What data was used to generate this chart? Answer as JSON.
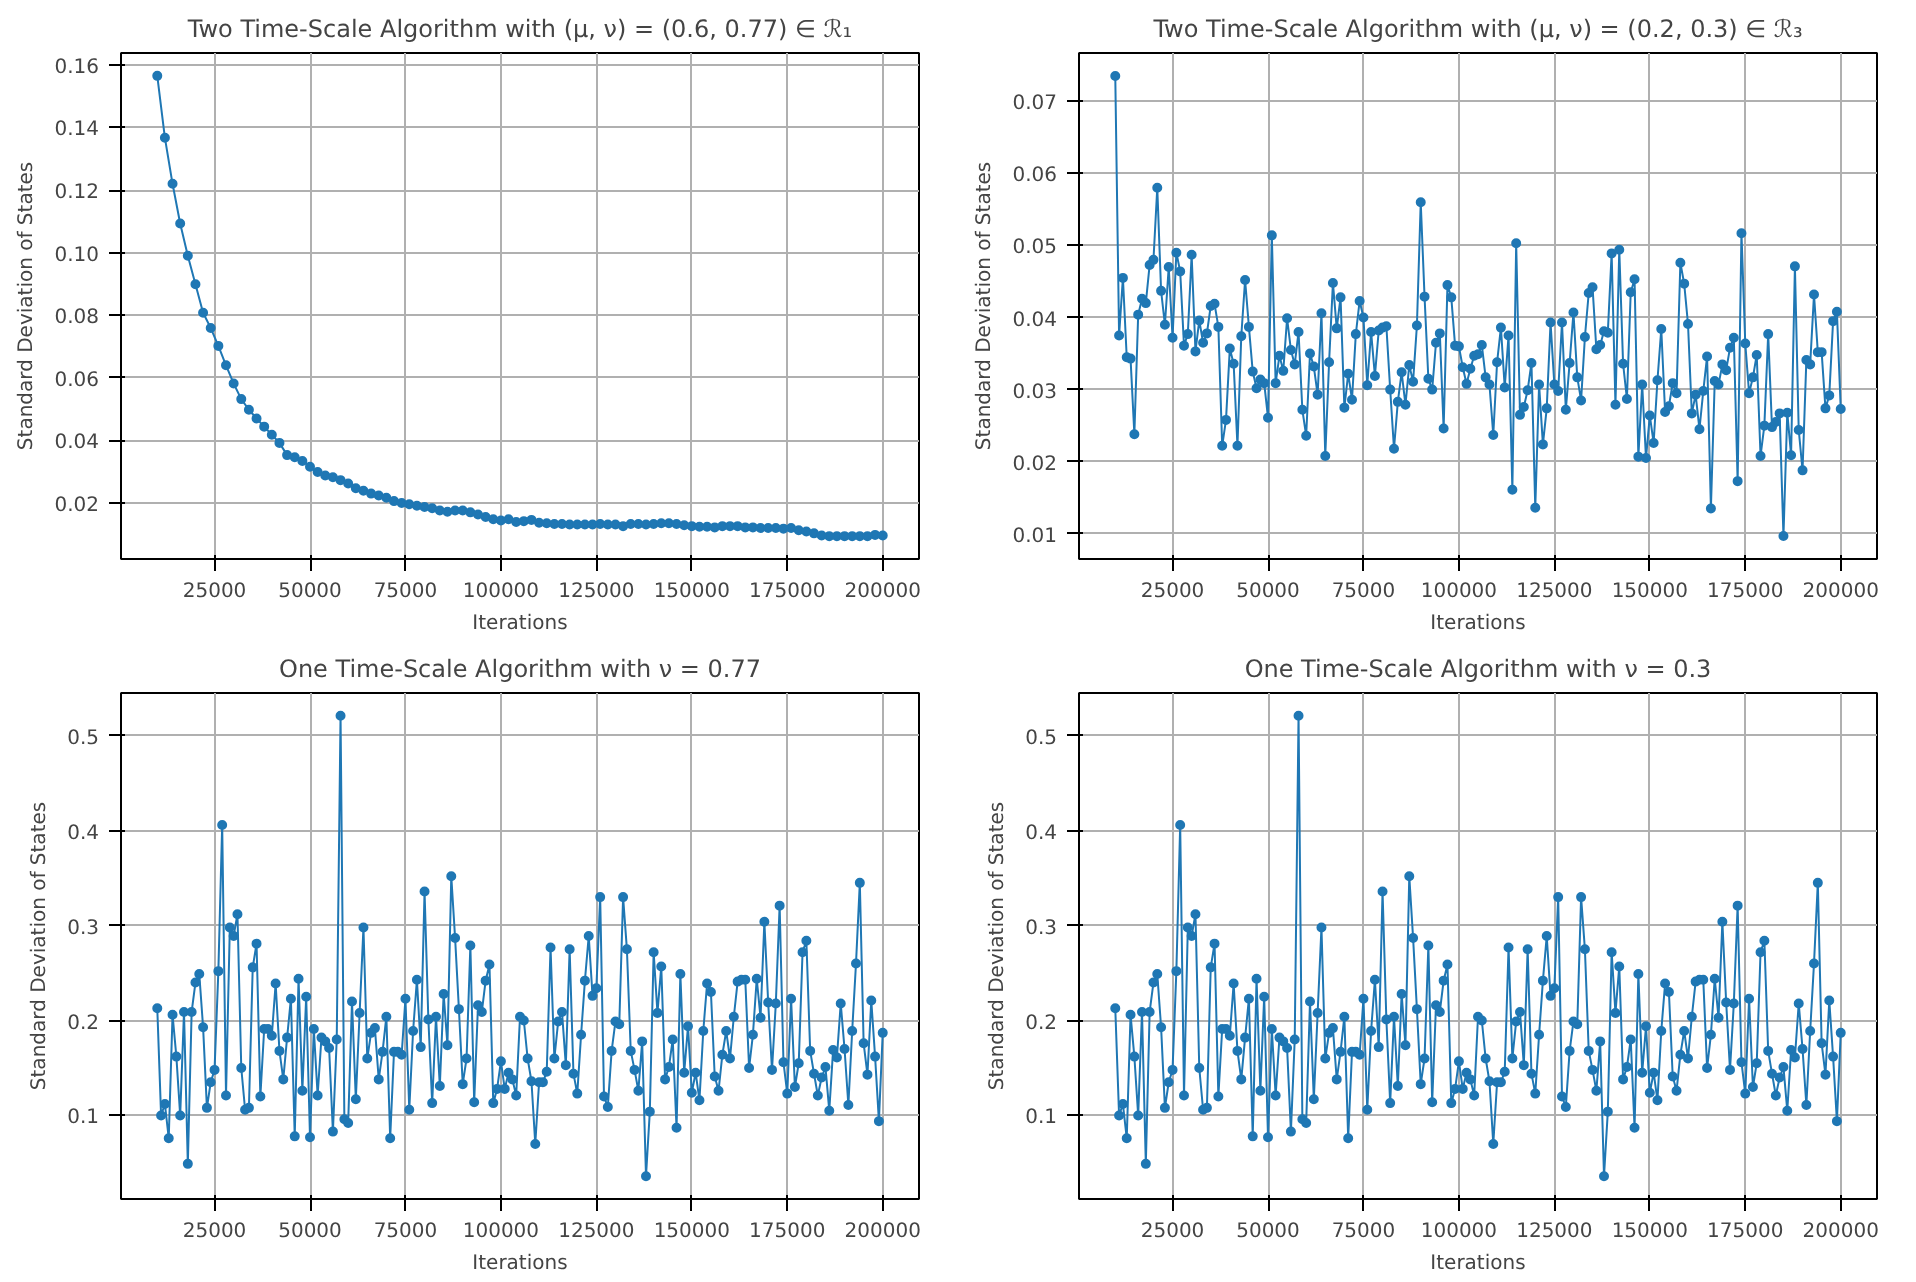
{
  "chart_data": [
    {
      "type": "line",
      "title": "Two Time-Scale Algorithm with (μ, ν) = (0.6, 0.77) ∈ ℛ₁",
      "xlabel": "Iterations",
      "ylabel": "Standard Deviation of States",
      "marker": "circle",
      "line_style": "solid",
      "grid": true,
      "xlim": [
        500,
        209500
      ],
      "ylim": [
        0.0021,
        0.1638
      ],
      "xticks": [
        25000,
        50000,
        75000,
        100000,
        125000,
        150000,
        175000,
        200000
      ],
      "yticks": [
        0.02,
        0.04,
        0.06,
        0.08,
        {
          "value": 0.1,
          "label": "0.10"
        },
        0.12,
        0.14,
        0.16
      ],
      "x": [
        10000,
        12000,
        14000,
        16000,
        18000,
        20000,
        22000,
        24000,
        26000,
        28000,
        30000,
        32000,
        34000,
        36000,
        38000,
        40000,
        42000,
        44000,
        46000,
        48000,
        50000,
        52000,
        54000,
        56000,
        58000,
        60000,
        62000,
        64000,
        66000,
        68000,
        70000,
        72000,
        74000,
        76000,
        78000,
        80000,
        82000,
        84000,
        86000,
        88000,
        90000,
        92000,
        94000,
        96000,
        98000,
        100000,
        102000,
        104000,
        106000,
        108000,
        110000,
        112000,
        114000,
        116000,
        118000,
        120000,
        122000,
        124000,
        126000,
        128000,
        130000,
        132000,
        134000,
        136000,
        138000,
        140000,
        142000,
        144000,
        146000,
        148000,
        150000,
        152000,
        154000,
        156000,
        158000,
        160000,
        162000,
        164000,
        166000,
        168000,
        170000,
        172000,
        174000,
        176000,
        178000,
        180000,
        182000,
        184000,
        186000,
        188000,
        190000,
        192000,
        194000,
        196000,
        198000,
        200000
      ],
      "series": [
        {
          "color": "#1f77b4",
          "values": [
            0.1565,
            0.1367,
            0.122,
            0.1093,
            0.099,
            0.0899,
            0.0808,
            0.0759,
            0.0702,
            0.064,
            0.0582,
            0.0532,
            0.0498,
            0.047,
            0.0444,
            0.0418,
            0.0392,
            0.0353,
            0.0346,
            0.0334,
            0.0316,
            0.0299,
            0.0288,
            0.0282,
            0.0273,
            0.0262,
            0.0247,
            0.0239,
            0.023,
            0.0224,
            0.0217,
            0.0206,
            0.02,
            0.0196,
            0.0191,
            0.0187,
            0.0183,
            0.0176,
            0.0172,
            0.0176,
            0.0176,
            0.017,
            0.0163,
            0.0155,
            0.0148,
            0.0144,
            0.0148,
            0.0139,
            0.0142,
            0.0146,
            0.0137,
            0.0135,
            0.0133,
            0.0133,
            0.0131,
            0.0131,
            0.0131,
            0.0131,
            0.0133,
            0.0131,
            0.0131,
            0.0126,
            0.0133,
            0.0133,
            0.0131,
            0.0133,
            0.0135,
            0.0135,
            0.0133,
            0.0129,
            0.0126,
            0.0124,
            0.0124,
            0.0122,
            0.0126,
            0.0126,
            0.0126,
            0.0122,
            0.0122,
            0.012,
            0.012,
            0.012,
            0.0118,
            0.012,
            0.0113,
            0.0109,
            0.0103,
            0.0096,
            0.0094,
            0.0094,
            0.0094,
            0.0094,
            0.0094,
            0.0094,
            0.0098,
            0.0096
          ]
        }
      ]
    },
    {
      "type": "line",
      "title": "Two Time-Scale Algorithm with (μ, ν) = (0.2, 0.3) ∈ ℛ₃",
      "xlabel": "Iterations",
      "ylabel": "Standard Deviation of States",
      "marker": "circle",
      "line_style": "solid",
      "grid": true,
      "xlim": [
        500,
        209500
      ],
      "ylim": [
        0.0065,
        0.0767
      ],
      "xticks": [
        25000,
        50000,
        75000,
        100000,
        125000,
        150000,
        175000,
        200000
      ],
      "yticks": [
        0.01,
        0.02,
        0.03,
        0.04,
        0.05,
        0.06,
        0.07
      ],
      "x": [
        10000,
        11000,
        12000,
        13000,
        14000,
        15000,
        16000,
        17000,
        18000,
        19000,
        20000,
        21000,
        22000,
        23000,
        24000,
        25000,
        26000,
        27000,
        28000,
        29000,
        30000,
        31000,
        32000,
        33000,
        34000,
        35000,
        36000,
        37000,
        38000,
        39000,
        40000,
        41000,
        42000,
        43000,
        44000,
        45000,
        46000,
        47000,
        48000,
        49000,
        50000,
        51000,
        52000,
        53000,
        54000,
        55000,
        56000,
        57000,
        58000,
        59000,
        60000,
        61000,
        62000,
        63000,
        64000,
        65000,
        66000,
        67000,
        68000,
        69000,
        70000,
        71000,
        72000,
        73000,
        74000,
        75000,
        76000,
        77000,
        78000,
        79000,
        80000,
        81000,
        82000,
        83000,
        84000,
        85000,
        86000,
        87000,
        88000,
        89000,
        90000,
        91000,
        92000,
        93000,
        94000,
        95000,
        96000,
        97000,
        98000,
        99000,
        100000,
        101000,
        102000,
        103000,
        104000,
        105000,
        106000,
        107000,
        108000,
        109000,
        110000,
        111000,
        112000,
        113000,
        114000,
        115000,
        116000,
        117000,
        118000,
        119000,
        120000,
        121000,
        122000,
        123000,
        124000,
        125000,
        126000,
        127000,
        128000,
        129000,
        130000,
        131000,
        132000,
        133000,
        134000,
        135000,
        136000,
        137000,
        138000,
        139000,
        140000,
        141000,
        142000,
        143000,
        144000,
        145000,
        146000,
        147000,
        148000,
        149000,
        150000,
        151000,
        152000,
        153000,
        154000,
        155000,
        156000,
        157000,
        158000,
        159000,
        160000,
        161000,
        162000,
        163000,
        164000,
        165000,
        166000,
        167000,
        168000,
        169000,
        170000,
        171000,
        172000,
        173000,
        174000,
        175000,
        176000,
        177000,
        178000,
        179000,
        180000,
        181000,
        182000,
        183000,
        184000,
        185000,
        186000,
        187000,
        188000,
        189000,
        190000,
        191000,
        192000,
        193000,
        194000,
        195000,
        196000,
        197000,
        198000,
        199000,
        200000
      ],
      "series": [
        {
          "color": "#1f77b4",
          "values": [
            0.0735,
            0.0375,
            0.0455,
            0.0345,
            0.0343,
            0.0238,
            0.0404,
            0.0426,
            0.042,
            0.0473,
            0.048,
            0.058,
            0.0437,
            0.039,
            0.047,
            0.0372,
            0.049,
            0.0464,
            0.0361,
            0.0377,
            0.0487,
            0.0353,
            0.0396,
            0.0365,
            0.0378,
            0.0416,
            0.0419,
            0.0387,
            0.0222,
            0.0258,
            0.0357,
            0.0336,
            0.0222,
            0.0374,
            0.0452,
            0.0387,
            0.0325,
            0.0302,
            0.0314,
            0.0309,
            0.0261,
            0.0514,
            0.0309,
            0.0347,
            0.0326,
            0.0399,
            0.0355,
            0.0335,
            0.038,
            0.0272,
            0.0236,
            0.035,
            0.0332,
            0.0293,
            0.0406,
            0.0208,
            0.0338,
            0.0448,
            0.0385,
            0.0428,
            0.0275,
            0.0322,
            0.0286,
            0.0377,
            0.0423,
            0.04,
            0.0306,
            0.038,
            0.0319,
            0.0382,
            0.0386,
            0.0388,
            0.03,
            0.0218,
            0.0283,
            0.0324,
            0.0279,
            0.0334,
            0.0311,
            0.0389,
            0.056,
            0.0429,
            0.0315,
            0.03,
            0.0365,
            0.0378,
            0.0246,
            0.0445,
            0.0428,
            0.0361,
            0.036,
            0.0331,
            0.0308,
            0.0329,
            0.0347,
            0.0349,
            0.0362,
            0.0317,
            0.0307,
            0.0237,
            0.0338,
            0.0386,
            0.0303,
            0.0375,
            0.0161,
            0.0503,
            0.0265,
            0.0276,
            0.0299,
            0.0337,
            0.0136,
            0.0307,
            0.0224,
            0.0274,
            0.0393,
            0.0307,
            0.0298,
            0.0393,
            0.0272,
            0.0337,
            0.0407,
            0.0317,
            0.0285,
            0.0373,
            0.0434,
            0.0442,
            0.0356,
            0.0362,
            0.0381,
            0.0379,
            0.0489,
            0.0279,
            0.0494,
            0.0336,
            0.0287,
            0.0435,
            0.0453,
            0.0207,
            0.0307,
            0.0205,
            0.0264,
            0.0226,
            0.0313,
            0.0384,
            0.0269,
            0.0277,
            0.0309,
            0.0295,
            0.0476,
            0.0447,
            0.0391,
            0.0267,
            0.0293,
            0.0245,
            0.0298,
            0.0346,
            0.0135,
            0.0312,
            0.0307,
            0.0335,
            0.0327,
            0.0358,
            0.0372,
            0.0173,
            0.0517,
            0.0364,
            0.0295,
            0.0317,
            0.0348,
            0.0208,
            0.025,
            0.0377,
            0.0248,
            0.0255,
            0.0267,
            0.0097,
            0.0268,
            0.0209,
            0.0471,
            0.0244,
            0.0188,
            0.0341,
            0.0335,
            0.0432,
            0.0352,
            0.0352,
            0.0274,
            0.0292,
            0.0395,
            0.0408,
            0.0273
          ]
        }
      ]
    },
    {
      "type": "line",
      "title": "One Time-Scale Algorithm with ν = 0.77",
      "x": [
        10000,
        11000,
        12000,
        13000,
        14000,
        15000,
        16000,
        17000,
        18000,
        19000,
        20000,
        21000,
        22000,
        23000,
        24000,
        25000,
        26000,
        27000,
        28000,
        29000,
        30000,
        31000,
        32000,
        33000,
        34000,
        35000,
        36000,
        37000,
        38000,
        39000,
        40000,
        41000,
        42000,
        43000,
        44000,
        45000,
        46000,
        47000,
        48000,
        49000,
        50000,
        51000,
        52000,
        53000,
        54000,
        55000,
        56000,
        57000,
        58000,
        59000,
        60000,
        61000,
        62000,
        63000,
        64000,
        65000,
        66000,
        67000,
        68000,
        69000,
        70000,
        71000,
        72000,
        73000,
        74000,
        75000,
        76000,
        77000,
        78000,
        79000,
        80000,
        81000,
        82000,
        83000,
        84000,
        85000,
        86000,
        87000,
        88000,
        89000,
        90000,
        91000,
        92000,
        93000,
        94000,
        95000,
        96000,
        97000,
        98000,
        99000,
        100000,
        101000,
        102000,
        103000,
        104000,
        105000,
        106000,
        107000,
        108000,
        109000,
        110000,
        111000,
        112000,
        113000,
        114000,
        115000,
        116000,
        117000,
        118000,
        119000,
        120000,
        121000,
        122000,
        123000,
        124000,
        125000,
        126000,
        127000,
        128000,
        129000,
        130000,
        131000,
        132000,
        133000,
        134000,
        135000,
        136000,
        137000,
        138000,
        139000,
        140000,
        141000,
        142000,
        143000,
        144000,
        145000,
        146000,
        147000,
        148000,
        149000,
        150000,
        151000,
        152000,
        153000,
        154000,
        155000,
        156000,
        157000,
        158000,
        159000,
        160000,
        161000,
        162000,
        163000,
        164000,
        165000,
        166000,
        167000,
        168000,
        169000,
        170000,
        171000,
        172000,
        173000,
        174000,
        175000,
        176000,
        177000,
        178000,
        179000,
        180000,
        181000,
        182000,
        183000,
        184000,
        185000,
        186000,
        187000,
        188000,
        189000,
        190000,
        191000,
        192000,
        193000,
        194000,
        195000,
        196000,
        197000,
        198000,
        199000,
        200000
      ],
      "xlabel": "Iterations",
      "ylabel": "Standard Deviation of States",
      "marker": "circle",
      "line_style": "solid",
      "grid": true,
      "xlim": [
        500,
        209500
      ],
      "ylim": [
        0.012,
        0.545
      ],
      "xticks": [
        25000,
        50000,
        75000,
        100000,
        125000,
        150000,
        175000,
        200000
      ],
      "yticks": [
        0.1,
        0.2,
        0.3,
        0.4,
        0.5
      ],
      "series": [
        {
          "color": "#1f77b4",
          "values": [
            0.213,
            0.1,
            0.112,
            0.076,
            0.206,
            0.162,
            0.1,
            0.209,
            0.049,
            0.209,
            0.24,
            0.249,
            0.193,
            0.108,
            0.135,
            0.148,
            0.252,
            0.406,
            0.121,
            0.298,
            0.289,
            0.312,
            0.15,
            0.106,
            0.108,
            0.256,
            0.281,
            0.12,
            0.191,
            0.191,
            0.184,
            0.239,
            0.168,
            0.138,
            0.182,
            0.223,
            0.078,
            0.244,
            0.126,
            0.225,
            0.077,
            0.191,
            0.121,
            0.182,
            0.178,
            0.171,
            0.083,
            0.18,
            0.521,
            0.096,
            0.092,
            0.22,
            0.117,
            0.208,
            0.298,
            0.16,
            0.187,
            0.192,
            0.138,
            0.167,
            0.204,
            0.076,
            0.167,
            0.167,
            0.164,
            0.223,
            0.106,
            0.189,
            0.243,
            0.172,
            0.336,
            0.201,
            0.113,
            0.204,
            0.131,
            0.228,
            0.174,
            0.352,
            0.287,
            0.212,
            0.133,
            0.16,
            0.279,
            0.114,
            0.216,
            0.209,
            0.242,
            0.259,
            0.113,
            0.128,
            0.157,
            0.128,
            0.145,
            0.138,
            0.121,
            0.204,
            0.2,
            0.16,
            0.136,
            0.07,
            0.135,
            0.135,
            0.146,
            0.277,
            0.16,
            0.199,
            0.209,
            0.153,
            0.275,
            0.144,
            0.123,
            0.185,
            0.242,
            0.289,
            0.226,
            0.234,
            0.33,
            0.12,
            0.109,
            0.168,
            0.199,
            0.196,
            0.33,
            0.275,
            0.168,
            0.148,
            0.126,
            0.178,
            0.036,
            0.104,
            0.272,
            0.208,
            0.257,
            0.138,
            0.151,
            0.18,
            0.087,
            0.249,
            0.145,
            0.194,
            0.124,
            0.145,
            0.116,
            0.189,
            0.239,
            0.23,
            0.141,
            0.126,
            0.164,
            0.189,
            0.16,
            0.204,
            0.241,
            0.243,
            0.243,
            0.15,
            0.185,
            0.244,
            0.203,
            0.304,
            0.219,
            0.148,
            0.218,
            0.321,
            0.156,
            0.123,
            0.223,
            0.13,
            0.155,
            0.272,
            0.284,
            0.168,
            0.144,
            0.121,
            0.14,
            0.151,
            0.105,
            0.169,
            0.161,
            0.218,
            0.17,
            0.111,
            0.189,
            0.26,
            0.345,
            0.176,
            0.143,
            0.221,
            0.162,
            0.094,
            0.187
          ]
        }
      ]
    },
    {
      "type": "line",
      "title": "One Time-Scale Algorithm with ν = 0.3",
      "x": [
        10000,
        11000,
        12000,
        13000,
        14000,
        15000,
        16000,
        17000,
        18000,
        19000,
        20000,
        21000,
        22000,
        23000,
        24000,
        25000,
        26000,
        27000,
        28000,
        29000,
        30000,
        31000,
        32000,
        33000,
        34000,
        35000,
        36000,
        37000,
        38000,
        39000,
        40000,
        41000,
        42000,
        43000,
        44000,
        45000,
        46000,
        47000,
        48000,
        49000,
        50000,
        51000,
        52000,
        53000,
        54000,
        55000,
        56000,
        57000,
        58000,
        59000,
        60000,
        61000,
        62000,
        63000,
        64000,
        65000,
        66000,
        67000,
        68000,
        69000,
        70000,
        71000,
        72000,
        73000,
        74000,
        75000,
        76000,
        77000,
        78000,
        79000,
        80000,
        81000,
        82000,
        83000,
        84000,
        85000,
        86000,
        87000,
        88000,
        89000,
        90000,
        91000,
        92000,
        93000,
        94000,
        95000,
        96000,
        97000,
        98000,
        99000,
        100000,
        101000,
        102000,
        103000,
        104000,
        105000,
        106000,
        107000,
        108000,
        109000,
        110000,
        111000,
        112000,
        113000,
        114000,
        115000,
        116000,
        117000,
        118000,
        119000,
        120000,
        121000,
        122000,
        123000,
        124000,
        125000,
        126000,
        127000,
        128000,
        129000,
        130000,
        131000,
        132000,
        133000,
        134000,
        135000,
        136000,
        137000,
        138000,
        139000,
        140000,
        141000,
        142000,
        143000,
        144000,
        145000,
        146000,
        147000,
        148000,
        149000,
        150000,
        151000,
        152000,
        153000,
        154000,
        155000,
        156000,
        157000,
        158000,
        159000,
        160000,
        161000,
        162000,
        163000,
        164000,
        165000,
        166000,
        167000,
        168000,
        169000,
        170000,
        171000,
        172000,
        173000,
        174000,
        175000,
        176000,
        177000,
        178000,
        179000,
        180000,
        181000,
        182000,
        183000,
        184000,
        185000,
        186000,
        187000,
        188000,
        189000,
        190000,
        191000,
        192000,
        193000,
        194000,
        195000,
        196000,
        197000,
        198000,
        199000,
        200000
      ],
      "xlabel": "Iterations",
      "ylabel": "Standard Deviation of States",
      "marker": "circle",
      "line_style": "solid",
      "grid": true,
      "xlim": [
        500,
        209500
      ],
      "ylim": [
        0.012,
        0.545
      ],
      "xticks": [
        25000,
        50000,
        75000,
        100000,
        125000,
        150000,
        175000,
        200000
      ],
      "yticks": [
        0.1,
        0.2,
        0.3,
        0.4,
        0.5
      ],
      "series": [
        {
          "color": "#1f77b4",
          "values": [
            0.213,
            0.1,
            0.112,
            0.076,
            0.206,
            0.162,
            0.1,
            0.209,
            0.049,
            0.209,
            0.24,
            0.249,
            0.193,
            0.108,
            0.135,
            0.148,
            0.252,
            0.406,
            0.121,
            0.298,
            0.289,
            0.312,
            0.15,
            0.106,
            0.108,
            0.256,
            0.281,
            0.12,
            0.191,
            0.191,
            0.184,
            0.239,
            0.168,
            0.138,
            0.182,
            0.223,
            0.078,
            0.244,
            0.126,
            0.225,
            0.077,
            0.191,
            0.121,
            0.182,
            0.178,
            0.171,
            0.083,
            0.18,
            0.521,
            0.096,
            0.092,
            0.22,
            0.117,
            0.208,
            0.298,
            0.16,
            0.187,
            0.192,
            0.138,
            0.167,
            0.204,
            0.076,
            0.167,
            0.167,
            0.164,
            0.223,
            0.106,
            0.189,
            0.243,
            0.172,
            0.336,
            0.201,
            0.113,
            0.204,
            0.131,
            0.228,
            0.174,
            0.352,
            0.287,
            0.212,
            0.133,
            0.16,
            0.279,
            0.114,
            0.216,
            0.209,
            0.242,
            0.259,
            0.113,
            0.128,
            0.157,
            0.128,
            0.145,
            0.138,
            0.121,
            0.204,
            0.2,
            0.16,
            0.136,
            0.07,
            0.135,
            0.135,
            0.146,
            0.277,
            0.16,
            0.199,
            0.209,
            0.153,
            0.275,
            0.144,
            0.123,
            0.185,
            0.242,
            0.289,
            0.226,
            0.234,
            0.33,
            0.12,
            0.109,
            0.168,
            0.199,
            0.196,
            0.33,
            0.275,
            0.168,
            0.148,
            0.126,
            0.178,
            0.036,
            0.104,
            0.272,
            0.208,
            0.257,
            0.138,
            0.151,
            0.18,
            0.087,
            0.249,
            0.145,
            0.194,
            0.124,
            0.145,
            0.116,
            0.189,
            0.239,
            0.23,
            0.141,
            0.126,
            0.164,
            0.189,
            0.16,
            0.204,
            0.241,
            0.243,
            0.243,
            0.15,
            0.185,
            0.244,
            0.203,
            0.304,
            0.219,
            0.148,
            0.218,
            0.321,
            0.156,
            0.123,
            0.223,
            0.13,
            0.155,
            0.272,
            0.284,
            0.168,
            0.144,
            0.121,
            0.14,
            0.151,
            0.105,
            0.169,
            0.161,
            0.218,
            0.17,
            0.111,
            0.189,
            0.26,
            0.345,
            0.176,
            0.143,
            0.221,
            0.162,
            0.094,
            0.187
          ]
        }
      ]
    }
  ]
}
